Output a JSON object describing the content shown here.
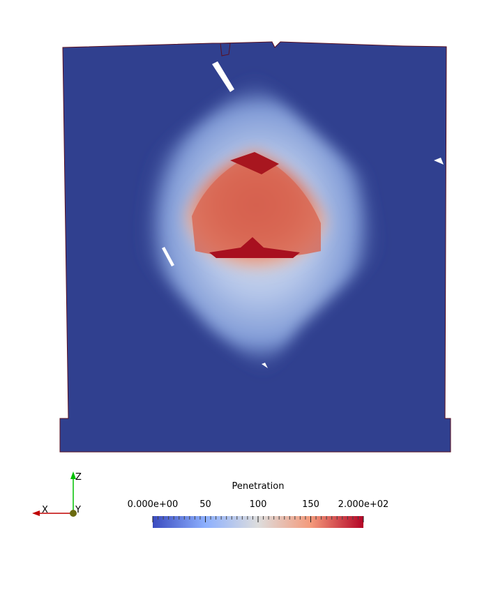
{
  "colorbar": {
    "title": "Penetration",
    "range": [
      0,
      200
    ],
    "ticks": [
      {
        "value": 0,
        "label": "0.000e+00"
      },
      50,
      100,
      150,
      {
        "value": 200,
        "label": "2.000e+02"
      }
    ]
  },
  "axes_triad": {
    "x": "X",
    "y": "Y",
    "z": "Z"
  }
}
